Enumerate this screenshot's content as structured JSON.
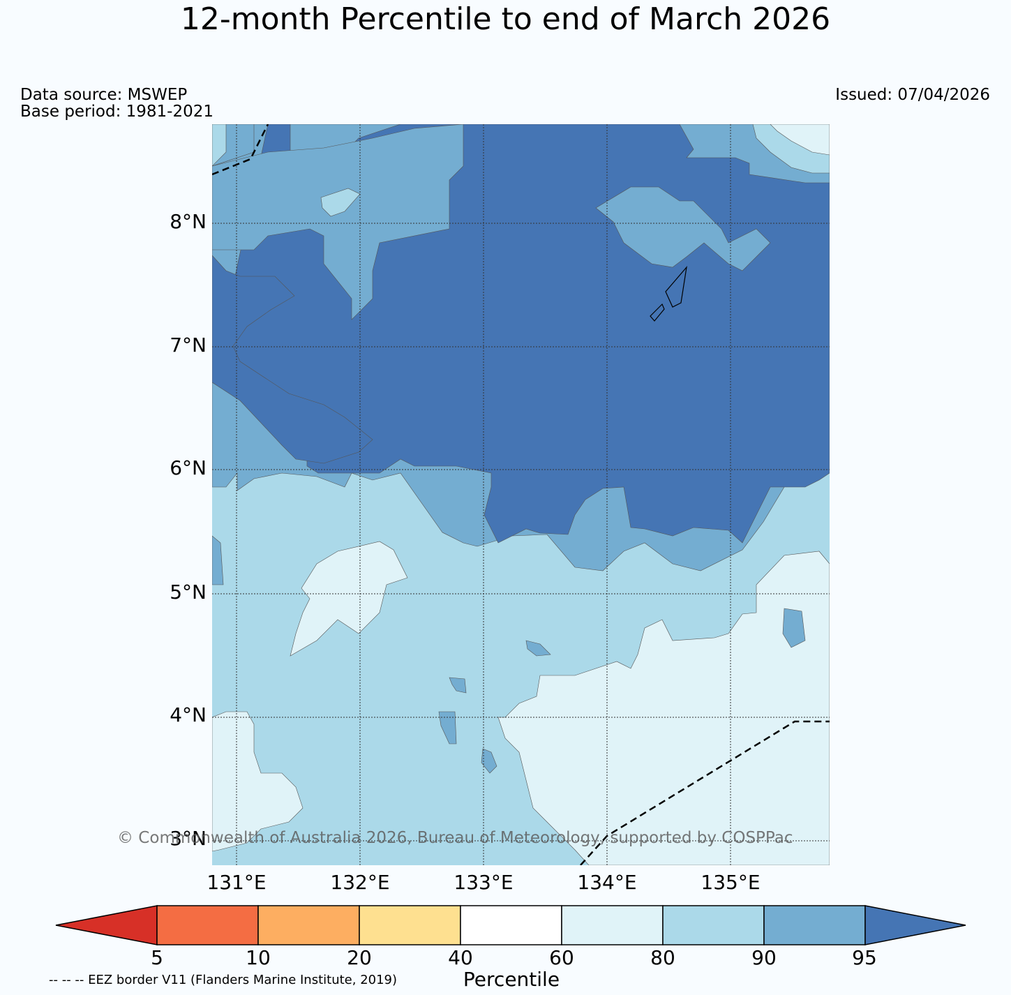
{
  "title": "12-month Percentile to end of March 2026",
  "data_source": "Data source: MSWEP",
  "base_period": "Base period: 1981-2021",
  "issued": "Issued: 07/04/2026",
  "copyright": "© Commonwealth of Australia 2026, Bureau of Meteorology, supported by COSPPac",
  "eez_note": "-- -- -- EEZ border V11 (Flanders Marine Institute, 2019)",
  "map": {
    "lat_labels": [
      "8°N",
      "7°N",
      "6°N",
      "5°N",
      "4°N",
      "3°N"
    ],
    "lon_labels": [
      "131°E",
      "132°E",
      "133°E",
      "134°E",
      "135°E"
    ],
    "extent": {
      "lon_min": 130.8,
      "lon_max": 135.8,
      "lat_min": 2.8,
      "lat_max": 8.8
    }
  },
  "colorbar": {
    "label": "Percentile",
    "ticks": [
      "5",
      "10",
      "20",
      "40",
      "60",
      "80",
      "90",
      "95"
    ],
    "colors": {
      "below_5": "#d73027",
      "5_10": "#f46d43",
      "10_20": "#fdae61",
      "20_40": "#fee090",
      "40_60": "#ffffff",
      "60_80": "#e0f3f8",
      "80_90": "#abd9e9",
      "90_95": "#74add1",
      "above_95": "#4575b4"
    }
  }
}
